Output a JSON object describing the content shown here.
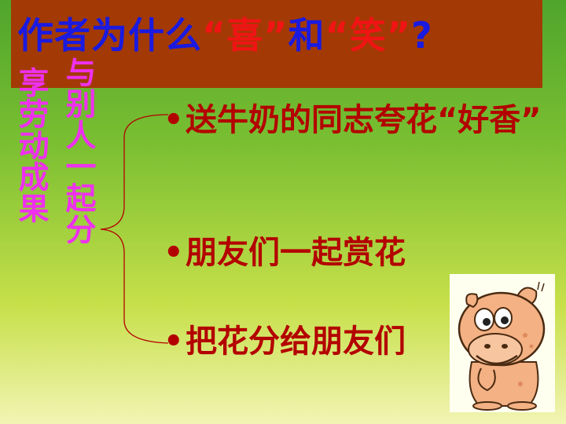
{
  "title": {
    "part1": "作者为什么",
    "part2": "“喜”",
    "part3": "和",
    "part4": "“笑”",
    "part5": "?"
  },
  "side_labels": [
    "与别人一起分",
    "享劳动成果"
  ],
  "bullets": [
    "送牛奶的同志夸花“好香”",
    "朋友们一起赏花",
    "把花分给朋友们"
  ],
  "bullet_symbol": "•",
  "colors": {
    "title_band": "#a33a05",
    "title_blue": "#1a1ae0",
    "title_red": "#f01414",
    "side_text": "#ee30ee",
    "bullet_text": "#b30000"
  },
  "image": {
    "icon": "cartoon-hippo-icon"
  }
}
